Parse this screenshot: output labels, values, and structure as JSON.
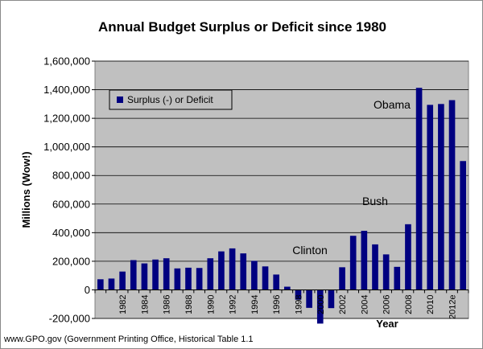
{
  "chart_data": {
    "type": "bar",
    "title": "Annual Budget Surplus or Deficit since 1980",
    "ylabel": "Millions (Wow!)",
    "xlabel": "Year",
    "ylim": [
      -200000,
      1600000
    ],
    "yticks": [
      "1,600,000",
      "1,400,000",
      "1,200,000",
      "1,000,000",
      "800,000",
      "600,000",
      "400,000",
      "200,000",
      "0",
      "-200,000"
    ],
    "ytick_values": [
      1600000,
      1400000,
      1200000,
      1000000,
      800000,
      600000,
      400000,
      200000,
      0,
      -200000
    ],
    "grid": true,
    "legend_position": "top-left",
    "categories": [
      "1980",
      "1981",
      "1982",
      "1983",
      "1984",
      "1985",
      "1986",
      "1987",
      "1988",
      "1989",
      "1990",
      "1991",
      "1992",
      "1993",
      "1994",
      "1995",
      "1996",
      "1997",
      "1998",
      "1999",
      "2000",
      "2001",
      "2002",
      "2003",
      "2004",
      "2005",
      "2006",
      "2007",
      "2008",
      "2009",
      "2010",
      "2011",
      "2012e",
      "2013e"
    ],
    "xtick_labels": [
      "1982",
      "1984",
      "1986",
      "1988",
      "1990",
      "1992",
      "1994",
      "1996",
      "1998",
      "2000",
      "2002",
      "2004",
      "2006",
      "2008",
      "2010",
      "2012e"
    ],
    "series": [
      {
        "name": "Surplus (-) or Deficit",
        "values": [
          74000,
          79000,
          128000,
          208000,
          185000,
          212000,
          221000,
          150000,
          155000,
          153000,
          221000,
          269000,
          290000,
          255000,
          203000,
          164000,
          107000,
          22000,
          -69000,
          -126000,
          -236000,
          -128000,
          158000,
          378000,
          413000,
          318000,
          248000,
          161000,
          459000,
          1413000,
          1294000,
          1300000,
          1327000,
          901000
        ]
      }
    ],
    "annotations": [
      {
        "text": "Clinton",
        "year": "1998"
      },
      {
        "text": "Bush",
        "year": "2004"
      },
      {
        "text": "Obama",
        "year": "2010"
      }
    ],
    "source": "www.GPO.gov (Government Printing Office, Historical Table 1.1",
    "colors": {
      "bar": "#000080",
      "plot_bg": "#c0c0c0",
      "grid": "#000000"
    }
  }
}
